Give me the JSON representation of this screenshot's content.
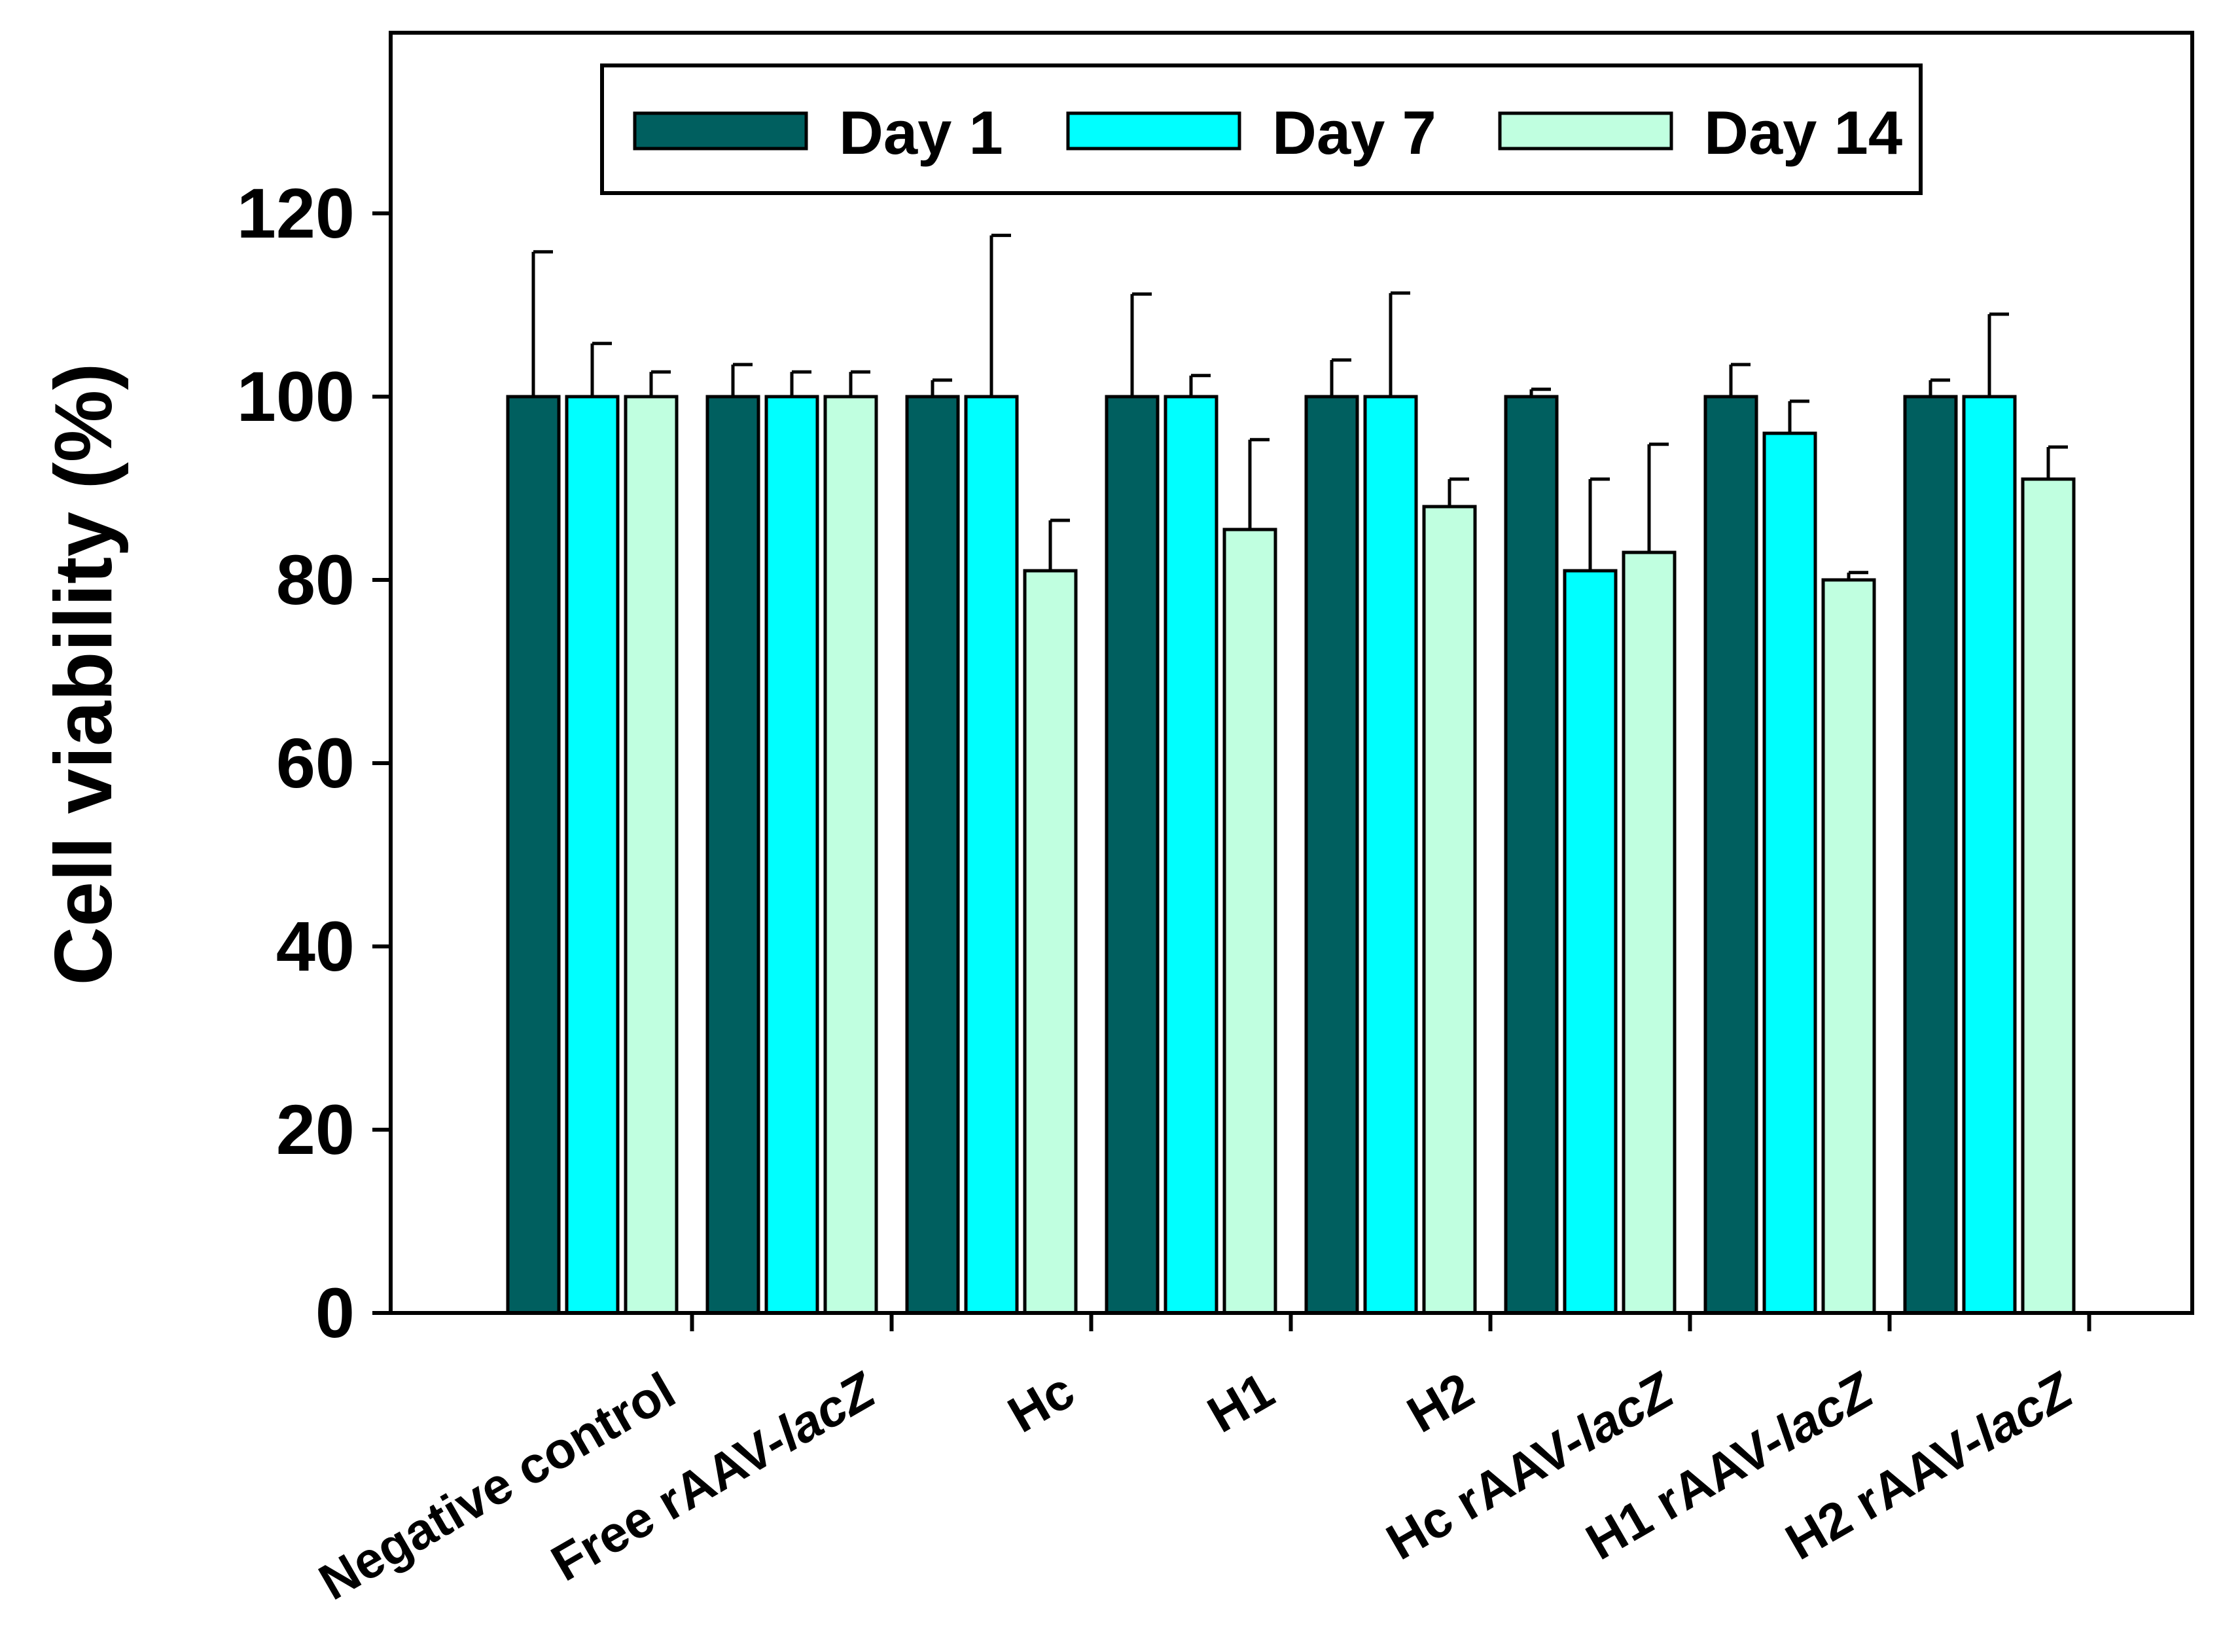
{
  "chart_data": {
    "type": "bar",
    "title": "",
    "xlabel": "",
    "ylabel": "Cell viability (%)",
    "ylim": [
      0,
      140
    ],
    "yticks": [
      0,
      20,
      40,
      60,
      80,
      100,
      120
    ],
    "grid": false,
    "legend_position": "top-center",
    "categories": [
      {
        "prefix": "Negative control",
        "italic": ""
      },
      {
        "prefix": "Free rAAV-",
        "italic": "lacZ"
      },
      {
        "prefix": "Hc",
        "italic": ""
      },
      {
        "prefix": "H1",
        "italic": ""
      },
      {
        "prefix": "H2",
        "italic": ""
      },
      {
        "prefix": "Hc rAAV-",
        "italic": "lacZ"
      },
      {
        "prefix": "H1 rAAV-",
        "italic": "lacZ"
      },
      {
        "prefix": "H2 rAAV-",
        "italic": "lacZ"
      }
    ],
    "series": [
      {
        "name": "Day 1",
        "color": "#005f5f",
        "values": [
          100,
          100,
          100,
          100,
          100,
          100,
          100,
          100
        ],
        "errors": [
          15.8,
          3.5,
          1.8,
          11.2,
          4.0,
          0.8,
          3.5,
          1.8
        ]
      },
      {
        "name": "Day 7",
        "color": "#00ffff",
        "values": [
          100,
          100,
          100,
          100,
          100,
          81.0,
          96.0,
          100
        ],
        "errors": [
          5.8,
          2.7,
          17.6,
          2.3,
          11.3,
          10.0,
          3.5,
          9.0
        ]
      },
      {
        "name": "Day 14",
        "color": "#c0ffe0",
        "values": [
          100,
          100,
          81.0,
          85.5,
          88.0,
          83.0,
          80.0,
          91.0
        ],
        "errors": [
          2.7,
          2.7,
          5.5,
          9.8,
          3.0,
          11.8,
          0.8,
          3.5
        ]
      }
    ]
  }
}
